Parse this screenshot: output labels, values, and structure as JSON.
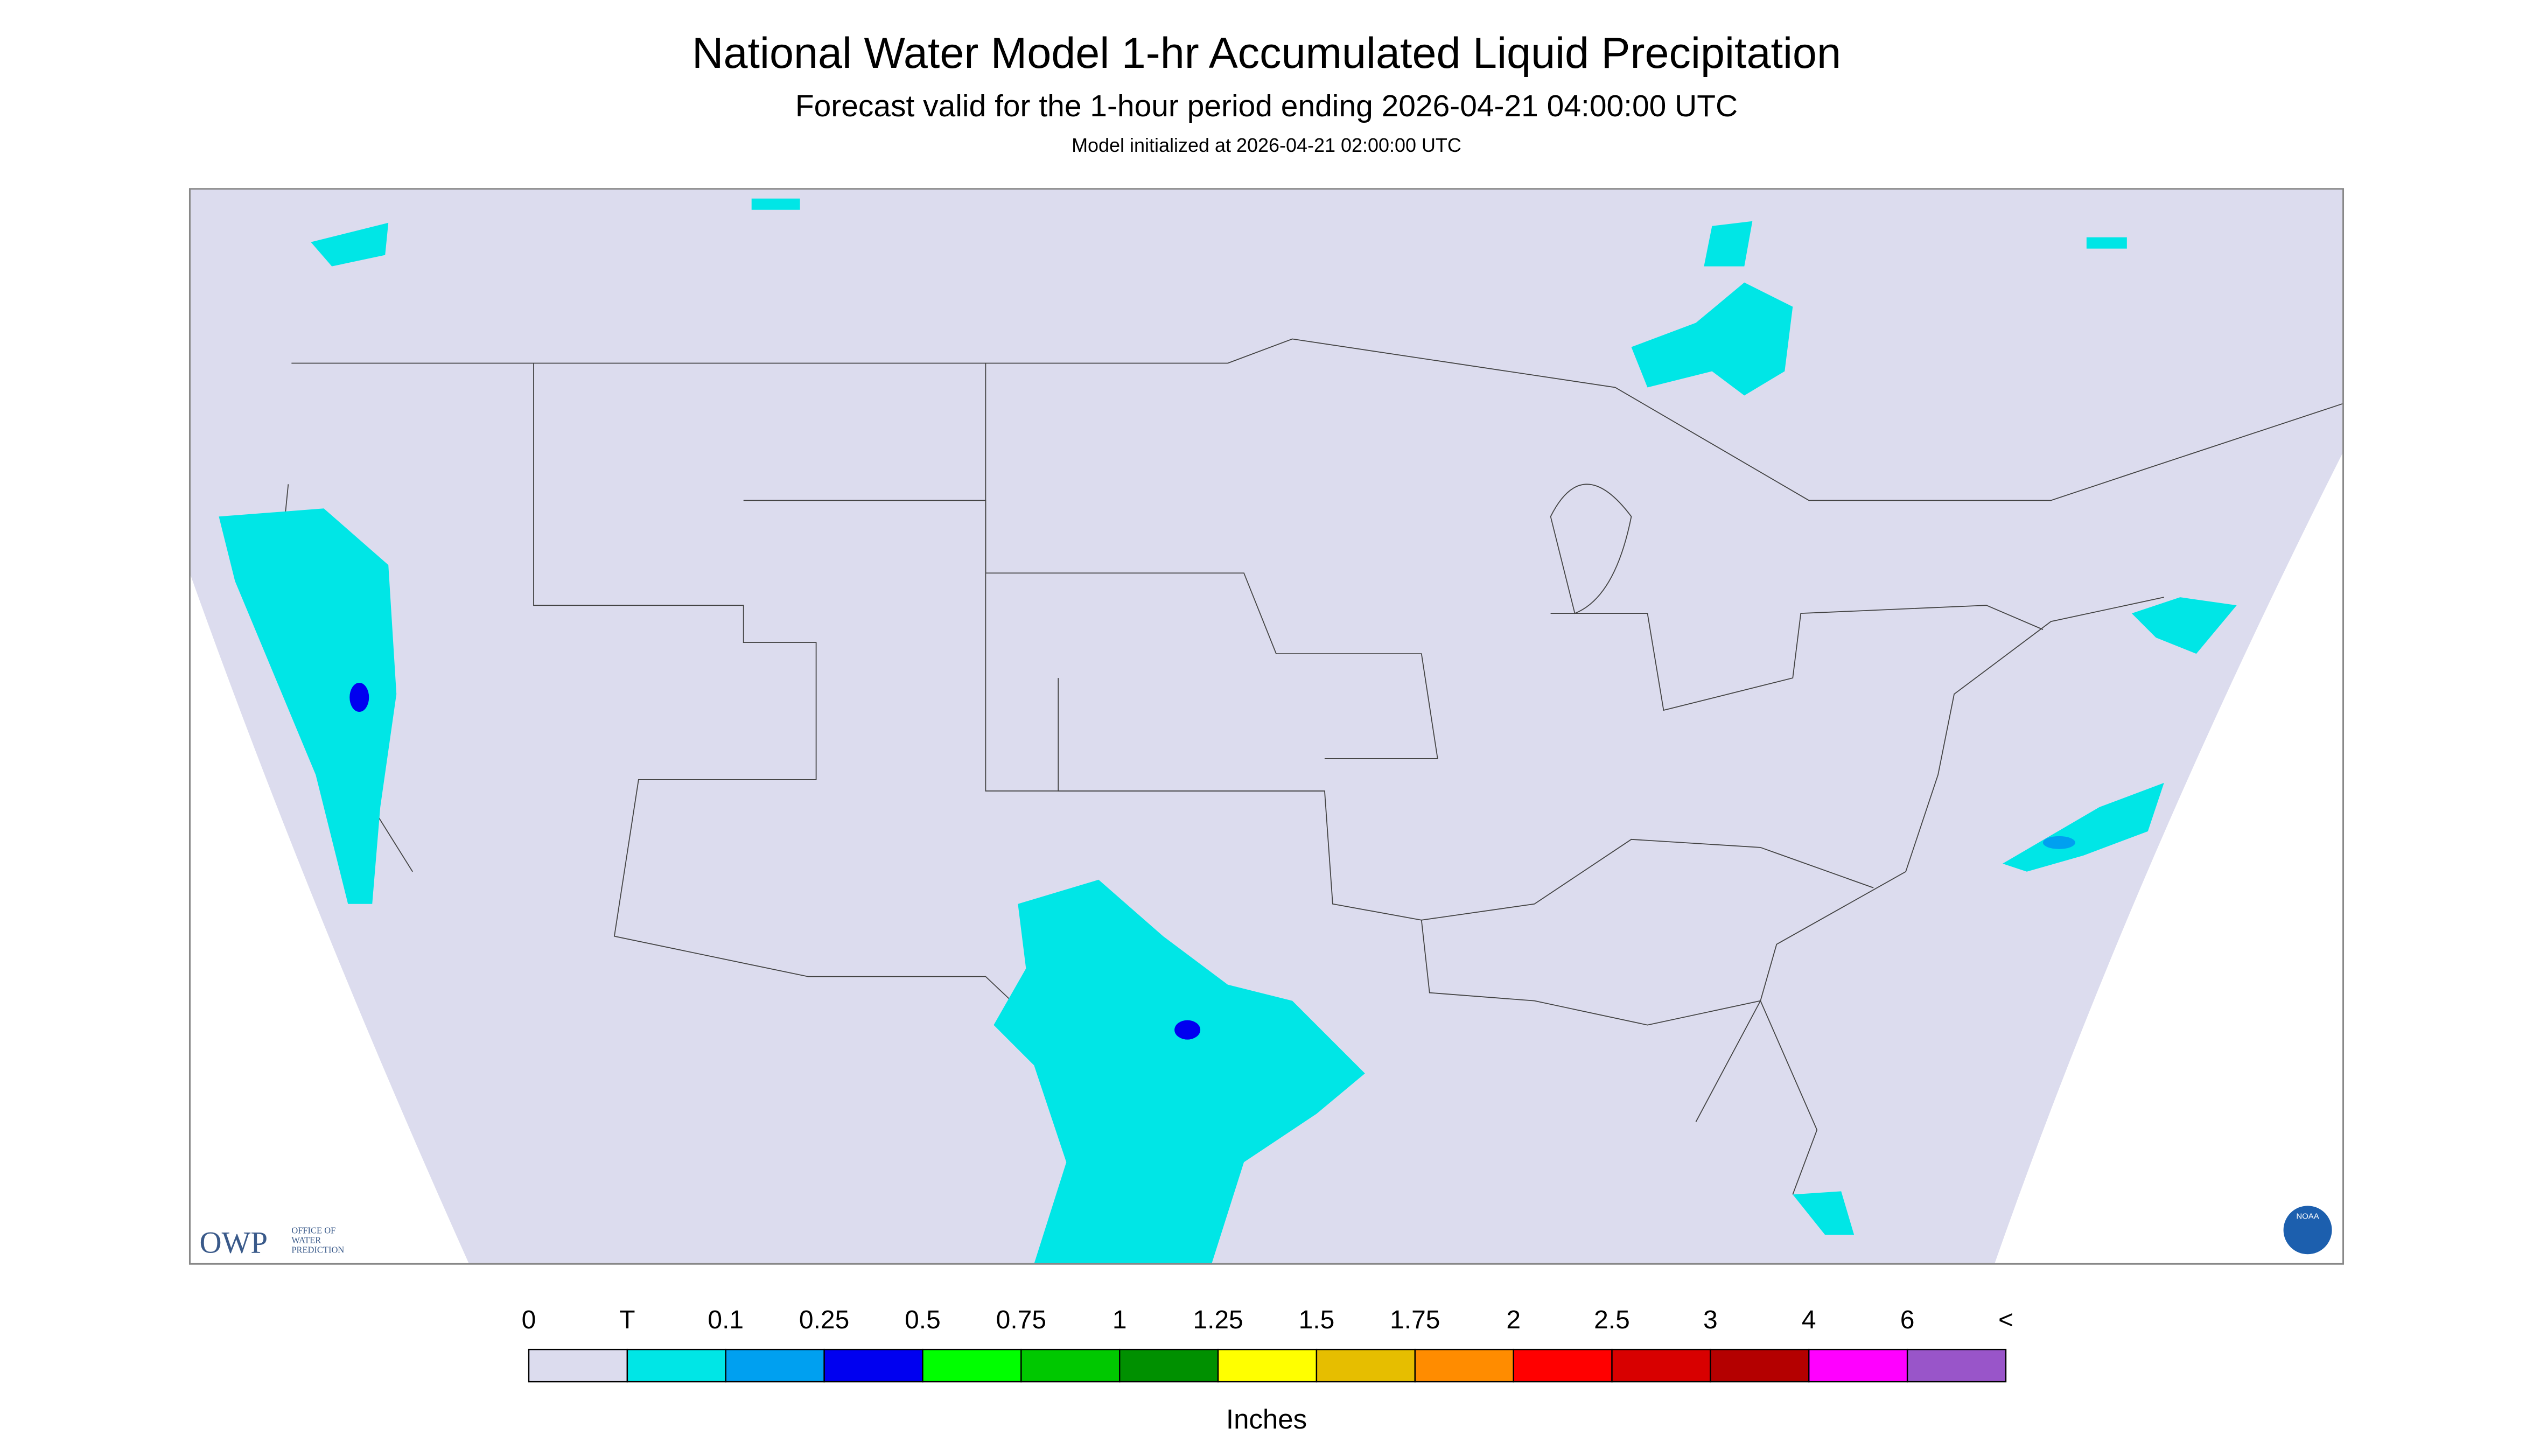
{
  "header": {
    "title": "National Water Model 1-hr Accumulated Liquid Precipitation",
    "subtitle": "Forecast valid for the 1-hour period ending 2026-04-21 04:00:00 UTC",
    "note": "Model initialized at 2026-04-21 02:00:00 UTC"
  },
  "legend": {
    "labels": [
      "0",
      "T",
      "0.1",
      "0.25",
      "0.5",
      "0.75",
      "1",
      "1.25",
      "1.5",
      "1.75",
      "2",
      "2.5",
      "3",
      "4",
      "6",
      "<"
    ],
    "colors": [
      "#dcdcee",
      "#00e6e6",
      "#00a0f0",
      "#0000f0",
      "#00ff00",
      "#00c800",
      "#009000",
      "#ffff00",
      "#e6be00",
      "#ff8c00",
      "#ff0000",
      "#d80000",
      "#b40000",
      "#ff00ff",
      "#9955c9"
    ],
    "unit": "Inches"
  },
  "logos": {
    "owp": "OWP",
    "owp_lines": [
      "OFFICE OF",
      "WATER",
      "PREDICTION"
    ],
    "noaa": "NOAA"
  }
}
